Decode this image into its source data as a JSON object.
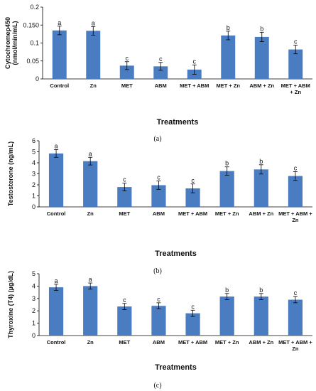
{
  "chart_data": [
    {
      "type": "bar",
      "categories": [
        "Control",
        "Zn",
        "MET",
        "ABM",
        "MET + ABM",
        "MET + Zn",
        "ABM + Zn",
        "MET + ABM\n+ Zn"
      ],
      "values": [
        0.135,
        0.134,
        0.037,
        0.035,
        0.026,
        0.121,
        0.117,
        0.082
      ],
      "errors": [
        0.012,
        0.012,
        0.011,
        0.011,
        0.013,
        0.012,
        0.013,
        0.012
      ],
      "significance": [
        "a",
        "a",
        "c",
        "c",
        "c",
        "b",
        "b",
        "c"
      ],
      "ylim": [
        0,
        0.2
      ],
      "yticks": [
        "0",
        "0.05",
        "0.1",
        "0.150",
        "0.2"
      ],
      "ylabel": "Cytochromep450\n(nmol/min/mL)",
      "xlabel": "Treatments",
      "panel_label": "(a)",
      "color": "#4a7cc2"
    },
    {
      "type": "bar",
      "categories": [
        "Control",
        "Zn",
        "MET",
        "ABM",
        "MET + ABM",
        "MET + Zn",
        "ABM + Zn",
        "MET + ABM +\nZn"
      ],
      "values": [
        4.85,
        4.15,
        1.8,
        1.97,
        1.68,
        3.25,
        3.4,
        2.8
      ],
      "errors": [
        0.35,
        0.35,
        0.35,
        0.38,
        0.4,
        0.38,
        0.42,
        0.4
      ],
      "significance": [
        "a",
        "a",
        "c",
        "c",
        "c",
        "b",
        "b",
        "c"
      ],
      "ylim": [
        0,
        6
      ],
      "yticks": [
        "0",
        "1",
        "2",
        "3",
        "4",
        "5",
        "6"
      ],
      "ylabel": "Testosterone (ng/mL)",
      "xlabel": "Treatments",
      "panel_label": "(b)",
      "color": "#4a7cc2"
    },
    {
      "type": "bar",
      "categories": [
        "Control",
        "Zn",
        "MET",
        "ABM",
        "MET + ABM",
        "MET + Zn",
        "ABM + Zn",
        "MET + ABM +\nZn"
      ],
      "values": [
        3.9,
        4.0,
        2.35,
        2.4,
        1.8,
        3.15,
        3.15,
        2.9
      ],
      "errors": [
        0.25,
        0.25,
        0.25,
        0.25,
        0.25,
        0.25,
        0.25,
        0.25
      ],
      "significance": [
        "a",
        "a",
        "c",
        "c",
        "c",
        "b",
        "b",
        "c"
      ],
      "ylim": [
        0,
        5
      ],
      "yticks": [
        "0",
        "1",
        "2",
        "3",
        "4",
        "5"
      ],
      "ylabel": "Thyroxine (T4) (µg/dL)",
      "xlabel": "Treatments",
      "panel_label": "(c)",
      "color": "#4a7cc2"
    }
  ]
}
